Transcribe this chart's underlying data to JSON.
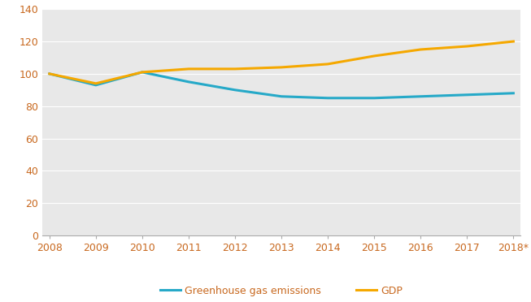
{
  "years": [
    2008,
    2009,
    2010,
    2011,
    2012,
    2013,
    2014,
    2015,
    2016,
    2017,
    2018
  ],
  "ghg_emissions": [
    100,
    93,
    101,
    95,
    90,
    86,
    85,
    85,
    86,
    87,
    88
  ],
  "gdp": [
    100,
    94,
    101,
    103,
    103,
    104,
    106,
    111,
    115,
    117,
    120
  ],
  "ghg_color": "#26a9c8",
  "gdp_color": "#f5a800",
  "background_color": "#ffffff",
  "plot_bg_color": "#e8e8e8",
  "line_width": 2.2,
  "ylim": [
    0,
    140
  ],
  "yticks": [
    0,
    20,
    40,
    60,
    80,
    100,
    120,
    140
  ],
  "xlabel_last": "2018*",
  "legend_ghg": "Greenhouse gas emissions",
  "legend_gdp": "GDP",
  "tick_color": "#c8681e",
  "tick_fontsize": 9,
  "legend_fontsize": 9,
  "grid_color": "#ffffff",
  "spine_color": "#aaaaaa"
}
